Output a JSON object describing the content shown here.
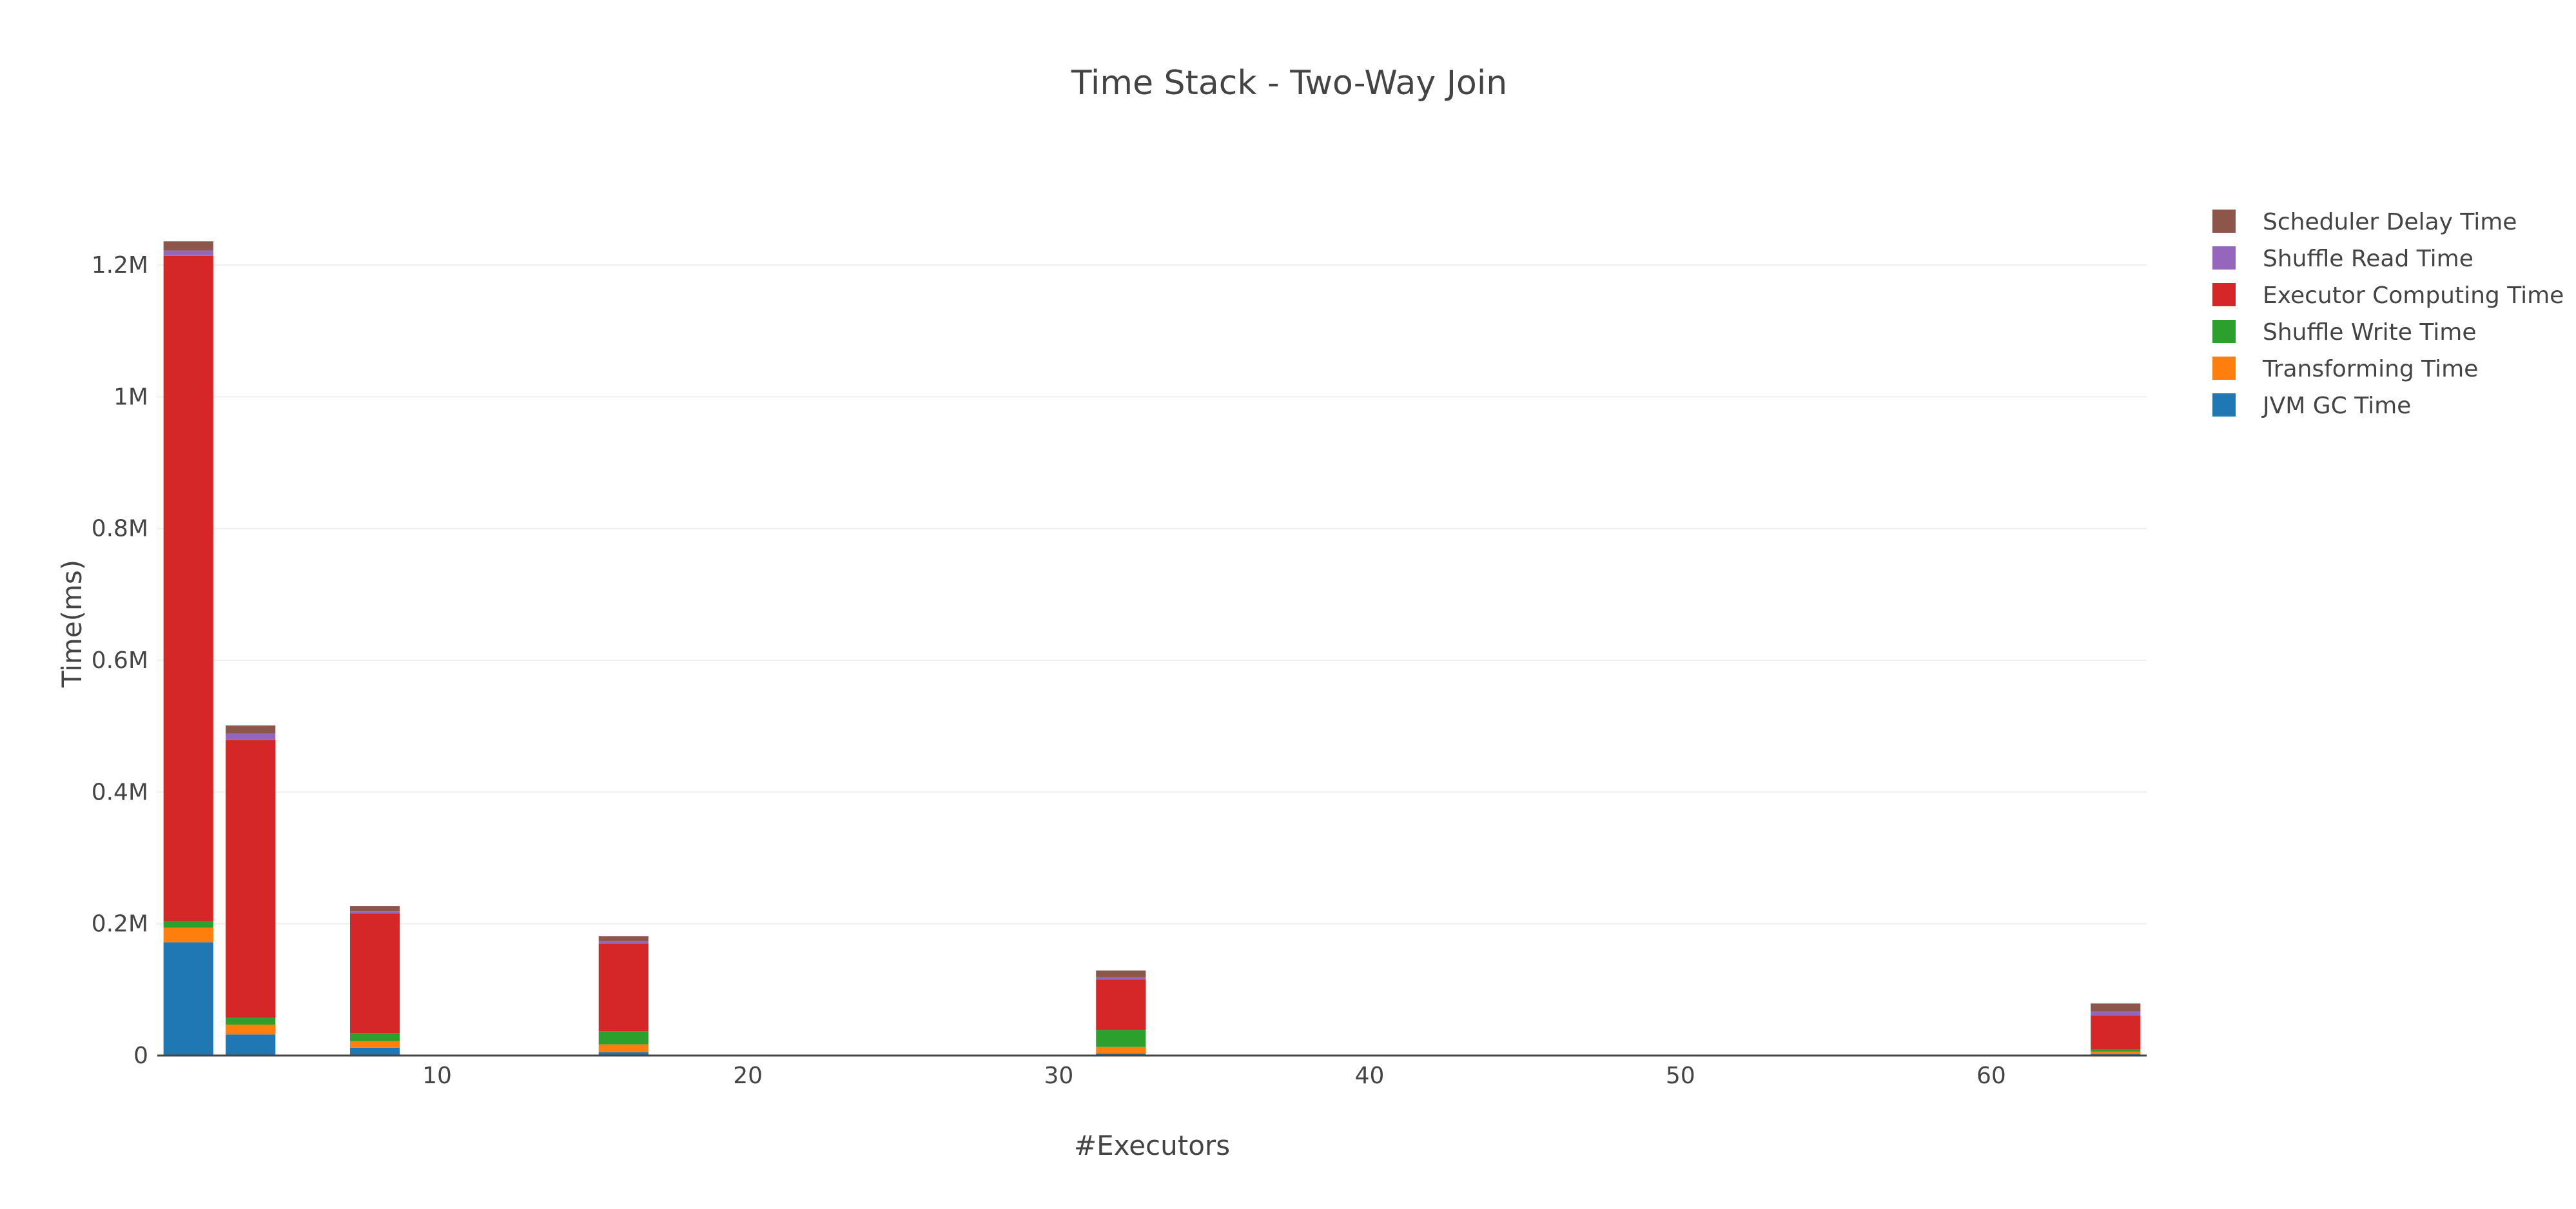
{
  "chart_data": {
    "type": "bar",
    "barmode": "stack",
    "title": "Time Stack - Two-Way Join",
    "xlabel": "#Executors",
    "ylabel": "Time(ms)",
    "x": [
      2,
      4,
      8,
      16,
      32,
      64
    ],
    "xlim": [
      1,
      65
    ],
    "ylim": [
      0,
      1250000
    ],
    "x_ticks": [
      10,
      20,
      30,
      40,
      50,
      60
    ],
    "x_tick_labels": [
      "10",
      "20",
      "30",
      "40",
      "50",
      "60"
    ],
    "y_ticks": [
      0,
      200000,
      400000,
      600000,
      800000,
      1000000,
      1200000
    ],
    "y_tick_labels": [
      "0",
      "0.2M",
      "0.4M",
      "0.6M",
      "0.8M",
      "1M",
      "1.2M"
    ],
    "grid": true,
    "legend_position": "top-right",
    "series": [
      {
        "name": "JVM GC Time",
        "color": "#1f77b4",
        "values": [
          172000,
          32000,
          12000,
          5000,
          3000,
          2000
        ]
      },
      {
        "name": "Transforming Time",
        "color": "#ff7f0e",
        "values": [
          22000,
          15000,
          10000,
          12000,
          10000,
          4000
        ]
      },
      {
        "name": "Shuffle Write Time",
        "color": "#2ca02c",
        "values": [
          10000,
          10000,
          12000,
          20000,
          26000,
          3000
        ]
      },
      {
        "name": "Executor Computing Time",
        "color": "#d62728",
        "values": [
          1010000,
          422000,
          182000,
          133000,
          76000,
          52000
        ]
      },
      {
        "name": "Shuffle Read Time",
        "color": "#9467bd",
        "values": [
          8000,
          10000,
          3000,
          4000,
          4000,
          6000
        ]
      },
      {
        "name": "Scheduler Delay Time",
        "color": "#8c564b",
        "values": [
          14000,
          12000,
          8000,
          7000,
          10000,
          12000
        ]
      }
    ]
  }
}
